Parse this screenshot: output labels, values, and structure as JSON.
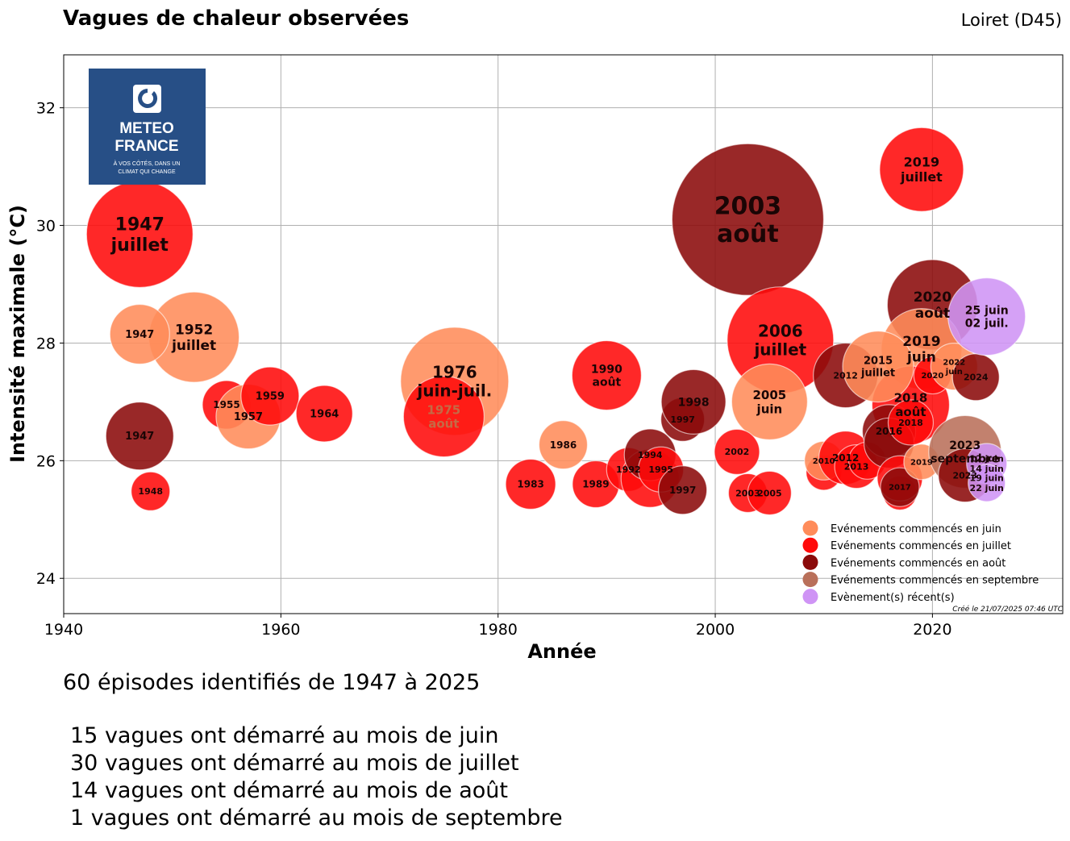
{
  "header": {
    "title": "Vagues de chaleur observées",
    "region": "Loiret (D45)"
  },
  "logo": {
    "line1": "METEO",
    "line2": "FRANCE",
    "tagline1": "À VOS CÔTÉS, DANS UN",
    "tagline2": "CLIMAT QUI CHANGE"
  },
  "footer_note": "Créé le 21/07/2025 07:46 UTC",
  "summary": {
    "headline": "60 épisodes identifiés de 1947 à 2025",
    "lines": [
      "15 vagues ont démarré au mois de juin",
      "30 vagues ont démarré au mois de juillet",
      "14 vagues ont démarré au mois de août",
      "1 vagues ont démarré au mois de septembre"
    ]
  },
  "chart_data": {
    "type": "scatter",
    "xlabel": "Année",
    "ylabel": "Intensité maximale (°C)",
    "xlim": [
      1940,
      2032
    ],
    "ylim": [
      23.4,
      32.9
    ],
    "xticks": [
      1940,
      1960,
      1980,
      2000,
      2020
    ],
    "yticks": [
      24,
      26,
      28,
      30,
      32
    ],
    "grid": true,
    "legend_position": "bottom-right",
    "colors": {
      "juin": "#ff8c5a",
      "juillet": "#ff0a0a",
      "aout": "#8b0a0a",
      "septembre": "#b9705a",
      "recent": "#cf94f5"
    },
    "legend": [
      {
        "key": "juin",
        "label": "Evénements commencés en juin"
      },
      {
        "key": "juillet",
        "label": "Evénements commencés en juillet"
      },
      {
        "key": "aout",
        "label": "Evénements commencés en août"
      },
      {
        "key": "septembre",
        "label": "Evénements commencés en septembre"
      },
      {
        "key": "recent",
        "label": "Evènement(s) récent(s)"
      }
    ],
    "events": [
      {
        "year": 2003,
        "intensity": 30.1,
        "size": 94,
        "month": "aout",
        "label": [
          "2003",
          "août"
        ],
        "fs": 30
      },
      {
        "year": 1947,
        "intensity": 29.85,
        "size": 66,
        "month": "juillet",
        "label": [
          "1947",
          "juillet"
        ],
        "fs": 22
      },
      {
        "year": 1976,
        "intensity": 27.35,
        "size": 67,
        "month": "juin",
        "label": [
          "1976",
          "juin-juil."
        ],
        "fs": 20
      },
      {
        "year": 1975,
        "intensity": 26.75,
        "size": 50,
        "month": "juillet",
        "label": [
          "1975",
          "août"
        ],
        "fs": 15,
        "label_color": "#c56a45"
      },
      {
        "year": 2006,
        "intensity": 28.05,
        "size": 66,
        "month": "juillet",
        "label": [
          "2006",
          "juillet"
        ],
        "fs": 20
      },
      {
        "year": 2005,
        "intensity": 27.0,
        "size": 47,
        "month": "juin",
        "label": [
          "2005",
          "juin"
        ],
        "fs": 15
      },
      {
        "year": 2019,
        "intensity": 30.95,
        "size": 52,
        "month": "juillet",
        "label": [
          "2019",
          "juillet"
        ],
        "fs": 16
      },
      {
        "year": 2020,
        "intensity": 28.65,
        "size": 56,
        "month": "aout",
        "label": [
          "2020",
          "août"
        ],
        "fs": 17
      },
      {
        "year": 2019,
        "intensity": 27.9,
        "size": 50,
        "month": "juin",
        "label": [
          "2019",
          "juin"
        ],
        "fs": 17
      },
      {
        "year": 2018,
        "intensity": 26.95,
        "size": 48,
        "month": "juillet",
        "label": [
          "2018",
          "août"
        ],
        "fs": 15
      },
      {
        "year": 1952,
        "intensity": 28.1,
        "size": 56,
        "month": "juin",
        "label": [
          "1952",
          "juillet"
        ],
        "fs": 17
      },
      {
        "year": 1947,
        "intensity": 28.15,
        "size": 37,
        "month": "juin",
        "label": [
          "1947"
        ],
        "fs": 13
      },
      {
        "year": 1947,
        "intensity": 26.42,
        "size": 42,
        "month": "aout",
        "label": [
          "1947"
        ],
        "fs": 13
      },
      {
        "year": 1948,
        "intensity": 25.48,
        "size": 24,
        "month": "juillet",
        "label": [
          "1948"
        ],
        "fs": 11
      },
      {
        "year": 1955,
        "intensity": 26.95,
        "size": 30,
        "month": "juillet",
        "label": [
          "1955"
        ],
        "fs": 12
      },
      {
        "year": 1957,
        "intensity": 26.75,
        "size": 40,
        "month": "juin",
        "label": [
          "1957"
        ],
        "fs": 13
      },
      {
        "year": 1959,
        "intensity": 27.1,
        "size": 36,
        "month": "juillet",
        "label": [
          "1959"
        ],
        "fs": 13
      },
      {
        "year": 1964,
        "intensity": 26.8,
        "size": 35,
        "month": "juillet",
        "label": [
          "1964"
        ],
        "fs": 13
      },
      {
        "year": 1983,
        "intensity": 25.6,
        "size": 31,
        "month": "juillet",
        "label": [
          "1983"
        ],
        "fs": 12
      },
      {
        "year": 1986,
        "intensity": 26.27,
        "size": 30,
        "month": "juin",
        "label": [
          "1986"
        ],
        "fs": 12
      },
      {
        "year": 1989,
        "intensity": 25.6,
        "size": 29,
        "month": "juillet",
        "label": [
          "1989"
        ],
        "fs": 12
      },
      {
        "year": 1990,
        "intensity": 27.45,
        "size": 43,
        "month": "juillet",
        "label": [
          "1990",
          "août"
        ],
        "fs": 14
      },
      {
        "year": 1992,
        "intensity": 25.85,
        "size": 27,
        "month": "juillet",
        "label": [
          "1992"
        ],
        "fs": 11
      },
      {
        "year": 1994,
        "intensity": 25.7,
        "size": 36,
        "month": "juillet",
        "label": [],
        "fs": 11
      },
      {
        "year": 1994,
        "intensity": 26.1,
        "size": 32,
        "month": "aout",
        "label": [
          "1994"
        ],
        "fs": 11
      },
      {
        "year": 1995,
        "intensity": 25.85,
        "size": 28,
        "month": "juillet",
        "label": [
          "1995"
        ],
        "fs": 11
      },
      {
        "year": 1997,
        "intensity": 26.7,
        "size": 27,
        "month": "aout",
        "label": [
          "1997"
        ],
        "fs": 11
      },
      {
        "year": 1997,
        "intensity": 25.5,
        "size": 30,
        "month": "aout",
        "label": [
          "1997"
        ],
        "fs": 12
      },
      {
        "year": 1998,
        "intensity": 27.0,
        "size": 40,
        "month": "aout",
        "label": [
          "1998"
        ],
        "fs": 14
      },
      {
        "year": 2002,
        "intensity": 26.15,
        "size": 28,
        "month": "juillet",
        "label": [
          "2002"
        ],
        "fs": 11
      },
      {
        "year": 2003,
        "intensity": 25.45,
        "size": 24,
        "month": "juillet",
        "label": [
          "2003"
        ],
        "fs": 11
      },
      {
        "year": 2005,
        "intensity": 25.45,
        "size": 27,
        "month": "juillet",
        "label": [
          "2005"
        ],
        "fs": 11
      },
      {
        "year": 2010,
        "intensity": 25.8,
        "size": 22,
        "month": "juillet",
        "label": [],
        "fs": 10
      },
      {
        "year": 2010,
        "intensity": 26.0,
        "size": 24,
        "month": "juin",
        "label": [
          "2010"
        ],
        "fs": 10
      },
      {
        "year": 2012,
        "intensity": 27.45,
        "size": 40,
        "month": "aout",
        "label": [
          "2012"
        ],
        "fs": 11
      },
      {
        "year": 2012,
        "intensity": 26.05,
        "size": 33,
        "month": "juillet",
        "label": [
          "2012"
        ],
        "fs": 12
      },
      {
        "year": 2013,
        "intensity": 25.9,
        "size": 27,
        "month": "juillet",
        "label": [
          "2013"
        ],
        "fs": 11
      },
      {
        "year": 2014,
        "intensity": 26.0,
        "size": 23,
        "month": "juillet",
        "label": [],
        "fs": 10
      },
      {
        "year": 2015,
        "intensity": 27.6,
        "size": 44,
        "month": "juin",
        "label": [
          "2015",
          "juillet"
        ],
        "fs": 13
      },
      {
        "year": 2016,
        "intensity": 26.5,
        "size": 33,
        "month": "aout",
        "label": [
          "2016"
        ],
        "fs": 12
      },
      {
        "year": 2016,
        "intensity": 26.3,
        "size": 31,
        "month": "aout",
        "label": [],
        "fs": 11
      },
      {
        "year": 2017,
        "intensity": 25.45,
        "size": 21,
        "month": "juillet",
        "label": [],
        "fs": 10
      },
      {
        "year": 2017,
        "intensity": 25.7,
        "size": 28,
        "month": "juillet",
        "label": [],
        "fs": 10
      },
      {
        "year": 2017,
        "intensity": 25.55,
        "size": 24,
        "month": "aout",
        "label": [
          "2017"
        ],
        "fs": 10
      },
      {
        "year": 2018,
        "intensity": 26.65,
        "size": 28,
        "month": "juillet",
        "label": [
          "2018"
        ],
        "fs": 11
      },
      {
        "year": 2019,
        "intensity": 25.98,
        "size": 22,
        "month": "juin",
        "label": [
          "2019"
        ],
        "fs": 10
      },
      {
        "year": 2020,
        "intensity": 27.45,
        "size": 23,
        "month": "juillet",
        "label": [
          "2020"
        ],
        "fs": 10
      },
      {
        "year": 2022,
        "intensity": 27.6,
        "size": 29,
        "month": "juin",
        "label": [
          "2022",
          "juin"
        ],
        "fs": 10
      },
      {
        "year": 2023,
        "intensity": 26.15,
        "size": 45,
        "month": "septembre",
        "label": [
          "2023",
          "septembre"
        ],
        "fs": 14
      },
      {
        "year": 2023,
        "intensity": 25.75,
        "size": 33,
        "month": "aout",
        "label": [
          "2023"
        ],
        "fs": 11
      },
      {
        "year": 2024,
        "intensity": 27.42,
        "size": 29,
        "month": "aout",
        "label": [
          "2024"
        ],
        "fs": 11
      },
      {
        "year": 2025,
        "intensity": 28.45,
        "size": 48,
        "month": "recent",
        "label": [
          "25 juin",
          "02 juil."
        ],
        "fs": 14
      },
      {
        "year": 2025,
        "intensity": 25.95,
        "size": 25,
        "month": "recent",
        "label": [
          "12 juin",
          "14 juin"
        ],
        "fs": 11
      },
      {
        "year": 2025,
        "intensity": 25.62,
        "size": 23,
        "month": "recent",
        "label": [
          "19 juin",
          "22 juin"
        ],
        "fs": 11
      }
    ]
  }
}
